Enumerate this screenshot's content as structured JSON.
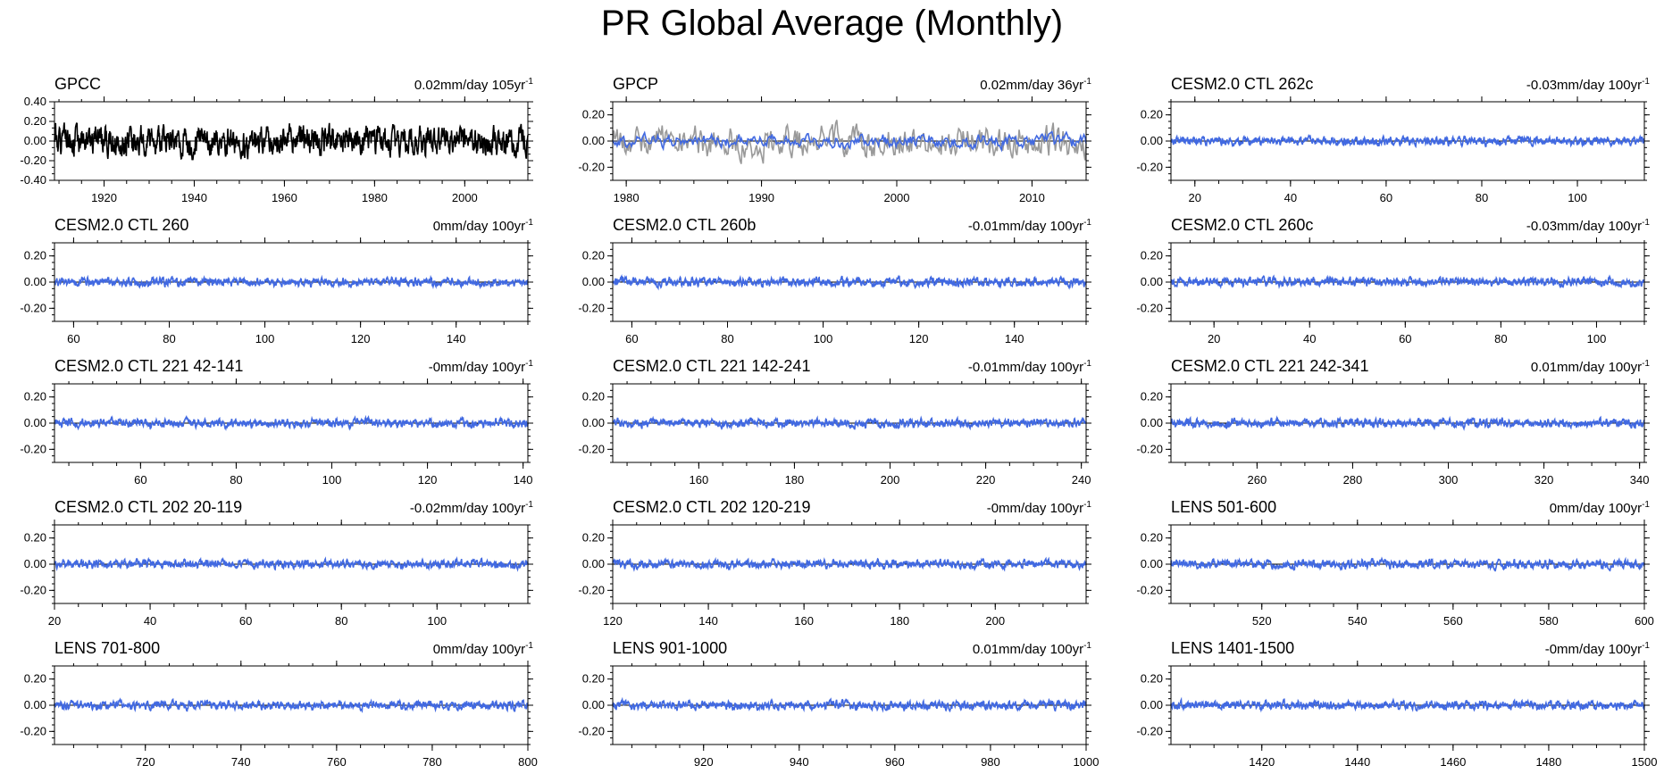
{
  "title": "PR Global Average (Monthly)",
  "colors": {
    "model": "#4169e1",
    "obs": "#000000",
    "obs_grey": "#999999",
    "axis": "#000000"
  },
  "chart_data": [
    {
      "type": "line",
      "title": "GPCC",
      "trend": "0.02mm/day 105yr",
      "trend_sup": "-1",
      "xlim": [
        1909,
        2014
      ],
      "ylim": [
        -0.4,
        0.4
      ],
      "yticks": [
        0.4,
        0.2,
        0.0,
        -0.2,
        -0.4
      ],
      "ytick_labels": [
        "0.40",
        "0.20",
        "0.00",
        "-0.20",
        "-0.40"
      ],
      "xticks": [
        1920,
        1940,
        1960,
        1980,
        2000
      ],
      "series": [
        {
          "color": "#000000",
          "amplitude": 0.11,
          "seed": 1
        }
      ]
    },
    {
      "type": "line",
      "title": "GPCP",
      "trend": "0.02mm/day 36yr",
      "trend_sup": "-1",
      "xlim": [
        1979,
        2014
      ],
      "ylim": [
        -0.3,
        0.3
      ],
      "yticks": [
        0.2,
        0.0,
        -0.2
      ],
      "ytick_labels": [
        "0.20",
        "0.00",
        "-0.20"
      ],
      "xticks": [
        1980,
        1990,
        2000,
        2010
      ],
      "series": [
        {
          "color": "#999999",
          "amplitude": 0.1,
          "seed": 2
        },
        {
          "color": "#4169e1",
          "amplitude": 0.04,
          "seed": 3
        }
      ]
    },
    {
      "type": "line",
      "title": "CESM2.0 CTL 262c",
      "trend": "-0.03mm/day 100yr",
      "trend_sup": "-1",
      "xlim": [
        15,
        114
      ],
      "ylim": [
        -0.3,
        0.3
      ],
      "yticks": [
        0.2,
        0.0,
        -0.2
      ],
      "ytick_labels": [
        "0.20",
        "0.00",
        "-0.20"
      ],
      "xticks": [
        20,
        40,
        60,
        80,
        100
      ],
      "series": [
        {
          "color": "#4169e1",
          "amplitude": 0.025,
          "seed": 4
        }
      ]
    },
    {
      "type": "line",
      "title": "CESM2.0 CTL 260",
      "trend": "0mm/day 100yr",
      "trend_sup": "-1",
      "xlim": [
        56,
        155
      ],
      "ylim": [
        -0.3,
        0.3
      ],
      "yticks": [
        0.2,
        0.0,
        -0.2
      ],
      "ytick_labels": [
        "0.20",
        "0.00",
        "-0.20"
      ],
      "xticks": [
        60,
        80,
        100,
        120,
        140
      ],
      "series": [
        {
          "color": "#4169e1",
          "amplitude": 0.025,
          "seed": 5
        }
      ]
    },
    {
      "type": "line",
      "title": "CESM2.0 CTL 260b",
      "trend": "-0.01mm/day 100yr",
      "trend_sup": "-1",
      "xlim": [
        56,
        155
      ],
      "ylim": [
        -0.3,
        0.3
      ],
      "yticks": [
        0.2,
        0.0,
        -0.2
      ],
      "ytick_labels": [
        "0.20",
        "0.00",
        "-0.20"
      ],
      "xticks": [
        60,
        80,
        100,
        120,
        140
      ],
      "series": [
        {
          "color": "#4169e1",
          "amplitude": 0.025,
          "seed": 6
        }
      ]
    },
    {
      "type": "line",
      "title": "CESM2.0 CTL 260c",
      "trend": "-0.03mm/day 100yr",
      "trend_sup": "-1",
      "xlim": [
        11,
        110
      ],
      "ylim": [
        -0.3,
        0.3
      ],
      "yticks": [
        0.2,
        0.0,
        -0.2
      ],
      "ytick_labels": [
        "0.20",
        "0.00",
        "-0.20"
      ],
      "xticks": [
        20,
        40,
        60,
        80,
        100
      ],
      "series": [
        {
          "color": "#4169e1",
          "amplitude": 0.025,
          "seed": 7
        }
      ]
    },
    {
      "type": "line",
      "title": "CESM2.0 CTL 221 42-141",
      "trend": "-0mm/day 100yr",
      "trend_sup": "-1",
      "xlim": [
        42,
        141
      ],
      "ylim": [
        -0.3,
        0.3
      ],
      "yticks": [
        0.2,
        0.0,
        -0.2
      ],
      "ytick_labels": [
        "0.20",
        "0.00",
        "-0.20"
      ],
      "xticks": [
        60,
        80,
        100,
        120,
        140
      ],
      "series": [
        {
          "color": "#4169e1",
          "amplitude": 0.025,
          "seed": 8
        }
      ]
    },
    {
      "type": "line",
      "title": "CESM2.0 CTL 221 142-241",
      "trend": "-0.01mm/day 100yr",
      "trend_sup": "-1",
      "xlim": [
        142,
        241
      ],
      "ylim": [
        -0.3,
        0.3
      ],
      "yticks": [
        0.2,
        0.0,
        -0.2
      ],
      "ytick_labels": [
        "0.20",
        "0.00",
        "-0.20"
      ],
      "xticks": [
        160,
        180,
        200,
        220,
        240
      ],
      "series": [
        {
          "color": "#4169e1",
          "amplitude": 0.025,
          "seed": 9
        }
      ]
    },
    {
      "type": "line",
      "title": "CESM2.0 CTL 221 242-341",
      "trend": "0.01mm/day 100yr",
      "trend_sup": "-1",
      "xlim": [
        242,
        341
      ],
      "ylim": [
        -0.3,
        0.3
      ],
      "yticks": [
        0.2,
        0.0,
        -0.2
      ],
      "ytick_labels": [
        "0.20",
        "0.00",
        "-0.20"
      ],
      "xticks": [
        260,
        280,
        300,
        320,
        340
      ],
      "series": [
        {
          "color": "#4169e1",
          "amplitude": 0.025,
          "seed": 10
        }
      ]
    },
    {
      "type": "line",
      "title": "CESM2.0 CTL 202 20-119",
      "trend": "-0.02mm/day 100yr",
      "trend_sup": "-1",
      "xlim": [
        20,
        119
      ],
      "ylim": [
        -0.3,
        0.3
      ],
      "yticks": [
        0.2,
        0.0,
        -0.2
      ],
      "ytick_labels": [
        "0.20",
        "0.00",
        "-0.20"
      ],
      "xticks": [
        20,
        40,
        60,
        80,
        100
      ],
      "series": [
        {
          "color": "#4169e1",
          "amplitude": 0.025,
          "seed": 11
        }
      ]
    },
    {
      "type": "line",
      "title": "CESM2.0 CTL 202 120-219",
      "trend": "-0mm/day 100yr",
      "trend_sup": "-1",
      "xlim": [
        120,
        219
      ],
      "ylim": [
        -0.3,
        0.3
      ],
      "yticks": [
        0.2,
        0.0,
        -0.2
      ],
      "ytick_labels": [
        "0.20",
        "0.00",
        "-0.20"
      ],
      "xticks": [
        120,
        140,
        160,
        180,
        200
      ],
      "series": [
        {
          "color": "#4169e1",
          "amplitude": 0.025,
          "seed": 12
        }
      ]
    },
    {
      "type": "line",
      "title": "LENS 501-600",
      "trend": "0mm/day 100yr",
      "trend_sup": "-1",
      "xlim": [
        501,
        600
      ],
      "ylim": [
        -0.3,
        0.3
      ],
      "yticks": [
        0.2,
        0.0,
        -0.2
      ],
      "ytick_labels": [
        "0.20",
        "0.00",
        "-0.20"
      ],
      "xticks": [
        520,
        540,
        560,
        580,
        600
      ],
      "series": [
        {
          "color": "#4169e1",
          "amplitude": 0.025,
          "seed": 13
        }
      ]
    },
    {
      "type": "line",
      "title": "LENS 701-800",
      "trend": "0mm/day 100yr",
      "trend_sup": "-1",
      "xlim": [
        701,
        800
      ],
      "ylim": [
        -0.3,
        0.3
      ],
      "yticks": [
        0.2,
        0.0,
        -0.2
      ],
      "ytick_labels": [
        "0.20",
        "0.00",
        "-0.20"
      ],
      "xticks": [
        720,
        740,
        760,
        780,
        800
      ],
      "series": [
        {
          "color": "#4169e1",
          "amplitude": 0.025,
          "seed": 14
        }
      ]
    },
    {
      "type": "line",
      "title": "LENS 901-1000",
      "trend": "0.01mm/day 100yr",
      "trend_sup": "-1",
      "xlim": [
        901,
        1000
      ],
      "ylim": [
        -0.3,
        0.3
      ],
      "yticks": [
        0.2,
        0.0,
        -0.2
      ],
      "ytick_labels": [
        "0.20",
        "0.00",
        "-0.20"
      ],
      "xticks": [
        920,
        940,
        960,
        980,
        1000
      ],
      "series": [
        {
          "color": "#4169e1",
          "amplitude": 0.025,
          "seed": 15
        }
      ]
    },
    {
      "type": "line",
      "title": "LENS 1401-1500",
      "trend": "-0mm/day 100yr",
      "trend_sup": "-1",
      "xlim": [
        1401,
        1500
      ],
      "ylim": [
        -0.3,
        0.3
      ],
      "yticks": [
        0.2,
        0.0,
        -0.2
      ],
      "ytick_labels": [
        "0.20",
        "0.00",
        "-0.20"
      ],
      "xticks": [
        1420,
        1440,
        1460,
        1480,
        1500
      ],
      "series": [
        {
          "color": "#4169e1",
          "amplitude": 0.025,
          "seed": 16
        }
      ]
    }
  ]
}
